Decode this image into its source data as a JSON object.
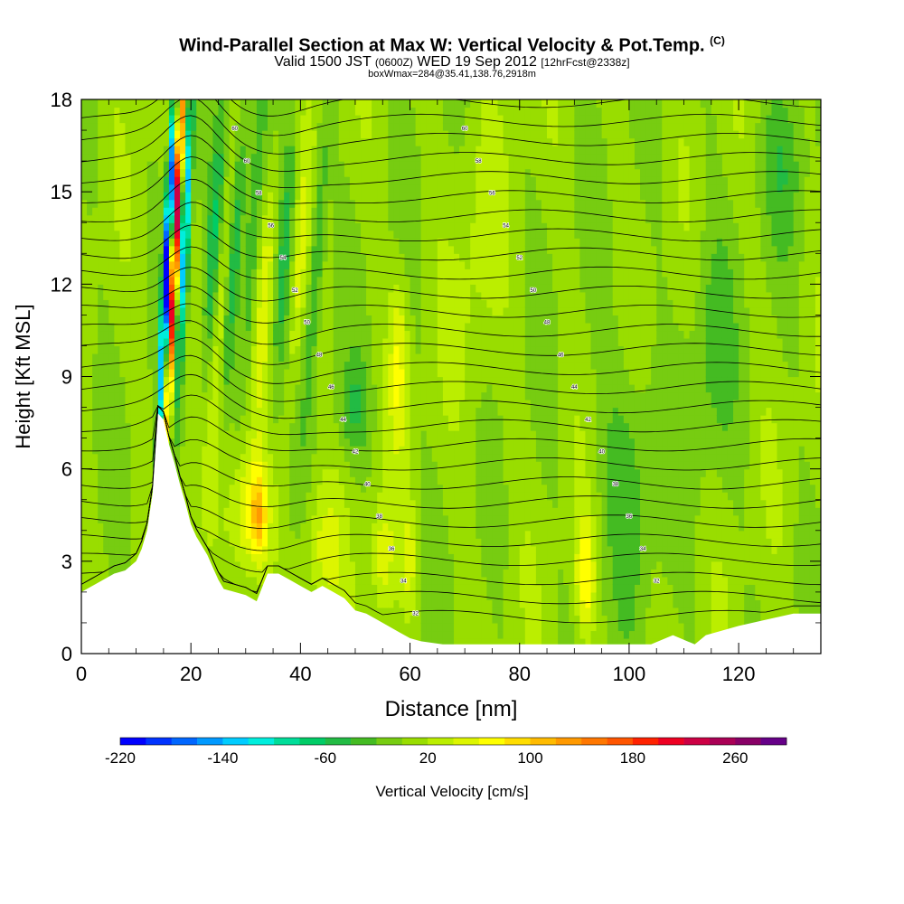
{
  "header": {
    "title": "Wind-Parallel Section at Max W: Vertical Velocity & Pot.Temp.",
    "title_tag": "(C)",
    "subtitle_a": "Valid 1500 JST",
    "subtitle_b": "(0600Z)",
    "subtitle_c": "WED 19 Sep 2012",
    "subtitle_d": "[12hrFcst@2338z]",
    "subtitle_e": "boxWmax=284@35.41,138.76,2918m"
  },
  "chart_data": {
    "type": "heatmap",
    "xlabel": "Distance [nm]",
    "ylabel": "Height [Kft MSL]",
    "xlim": [
      0,
      135
    ],
    "ylim": [
      0,
      18
    ],
    "x_ticks": [
      "0",
      "20",
      "40",
      "60",
      "80",
      "100",
      "120"
    ],
    "y_ticks": [
      "0",
      "3",
      "6",
      "9",
      "12",
      "15",
      "18"
    ],
    "colorbar": {
      "label": "Vertical Velocity [cm/s]",
      "tick_labels": [
        "-220",
        "-140",
        "-60",
        "20",
        "100",
        "180",
        "260"
      ],
      "levels": [
        -220,
        -200,
        -180,
        -160,
        -140,
        -120,
        -100,
        -80,
        -60,
        -40,
        -20,
        0,
        20,
        40,
        60,
        80,
        100,
        120,
        140,
        160,
        180,
        200,
        220,
        240,
        260,
        280
      ],
      "colors": [
        "#0000ff",
        "#0033ff",
        "#0066ff",
        "#0099ff",
        "#00ccff",
        "#00eedd",
        "#00dd99",
        "#00cc66",
        "#22bb44",
        "#44bb22",
        "#77cc11",
        "#99dd00",
        "#bbee00",
        "#ddf500",
        "#ffff00",
        "#ffdd00",
        "#ffbb00",
        "#ff9900",
        "#ff7700",
        "#ff5500",
        "#ff2200",
        "#ee0022",
        "#cc0044",
        "#aa0055",
        "#880066",
        "#660088"
      ]
    },
    "terrain_profile": [
      [
        0,
        2.0
      ],
      [
        3,
        2.3
      ],
      [
        6,
        2.6
      ],
      [
        8,
        2.7
      ],
      [
        10,
        3.0
      ],
      [
        11,
        3.4
      ],
      [
        12,
        4.0
      ],
      [
        13,
        5.2
      ],
      [
        14,
        7.8
      ],
      [
        15,
        7.6
      ],
      [
        16,
        6.8
      ],
      [
        17,
        6.2
      ],
      [
        18,
        5.5
      ],
      [
        19,
        4.9
      ],
      [
        20,
        4.2
      ],
      [
        21,
        3.8
      ],
      [
        22,
        3.5
      ],
      [
        23,
        3.2
      ],
      [
        24,
        2.8
      ],
      [
        25,
        2.4
      ],
      [
        26,
        2.1
      ],
      [
        28,
        2.0
      ],
      [
        30,
        1.9
      ],
      [
        32,
        1.7
      ],
      [
        34,
        2.6
      ],
      [
        36,
        2.6
      ],
      [
        38,
        2.4
      ],
      [
        40,
        2.2
      ],
      [
        42,
        2.0
      ],
      [
        44,
        2.2
      ],
      [
        46,
        2.0
      ],
      [
        48,
        1.8
      ],
      [
        50,
        1.4
      ],
      [
        52,
        1.3
      ],
      [
        54,
        1.1
      ],
      [
        56,
        0.9
      ],
      [
        58,
        0.7
      ],
      [
        60,
        0.5
      ],
      [
        62,
        0.4
      ],
      [
        66,
        0.3
      ],
      [
        76,
        0.3
      ],
      [
        90,
        0.3
      ],
      [
        104,
        0.3
      ],
      [
        108,
        0.6
      ],
      [
        112,
        0.3
      ],
      [
        114,
        0.6
      ],
      [
        120,
        0.9
      ],
      [
        125,
        1.1
      ],
      [
        130,
        1.3
      ],
      [
        135,
        1.3
      ]
    ],
    "isentrope_labels": [
      "60",
      "60",
      "58",
      "56",
      "54",
      "52",
      "50",
      "48",
      "46",
      "44",
      "42",
      "40",
      "38",
      "36",
      "34",
      "32",
      "60",
      "58",
      "56",
      "54",
      "52",
      "50",
      "48",
      "46",
      "44",
      "42",
      "40",
      "38",
      "36",
      "34",
      "32"
    ],
    "isentrope_count": 28
  }
}
